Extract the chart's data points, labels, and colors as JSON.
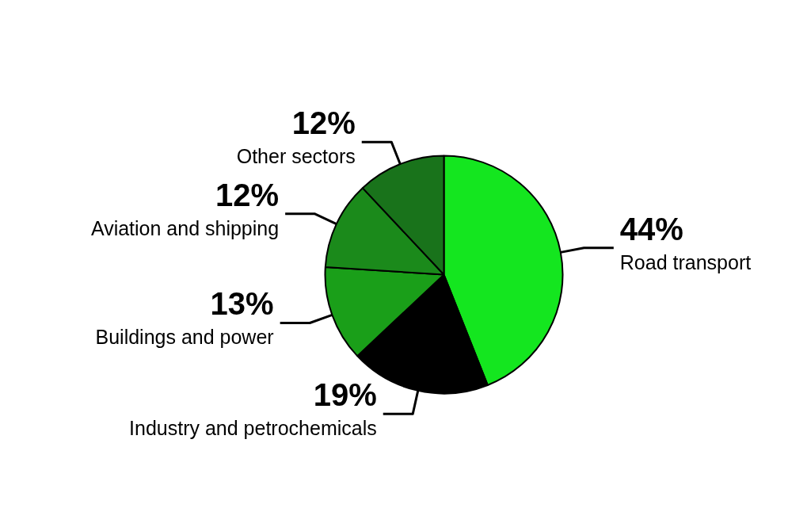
{
  "chart_data": {
    "type": "pie",
    "categories": [
      "Road transport",
      "Industry and petrochemicals",
      "Buildings and power",
      "Aviation and shipping",
      "Other sectors"
    ],
    "values": [
      44,
      19,
      13,
      12,
      12
    ],
    "colors": [
      "#14e61f",
      "#000000",
      "#1a9f19",
      "#1b8a1b",
      "#19731b"
    ],
    "value_labels": [
      "44%",
      "19%",
      "13%",
      "12%",
      "12%"
    ]
  }
}
